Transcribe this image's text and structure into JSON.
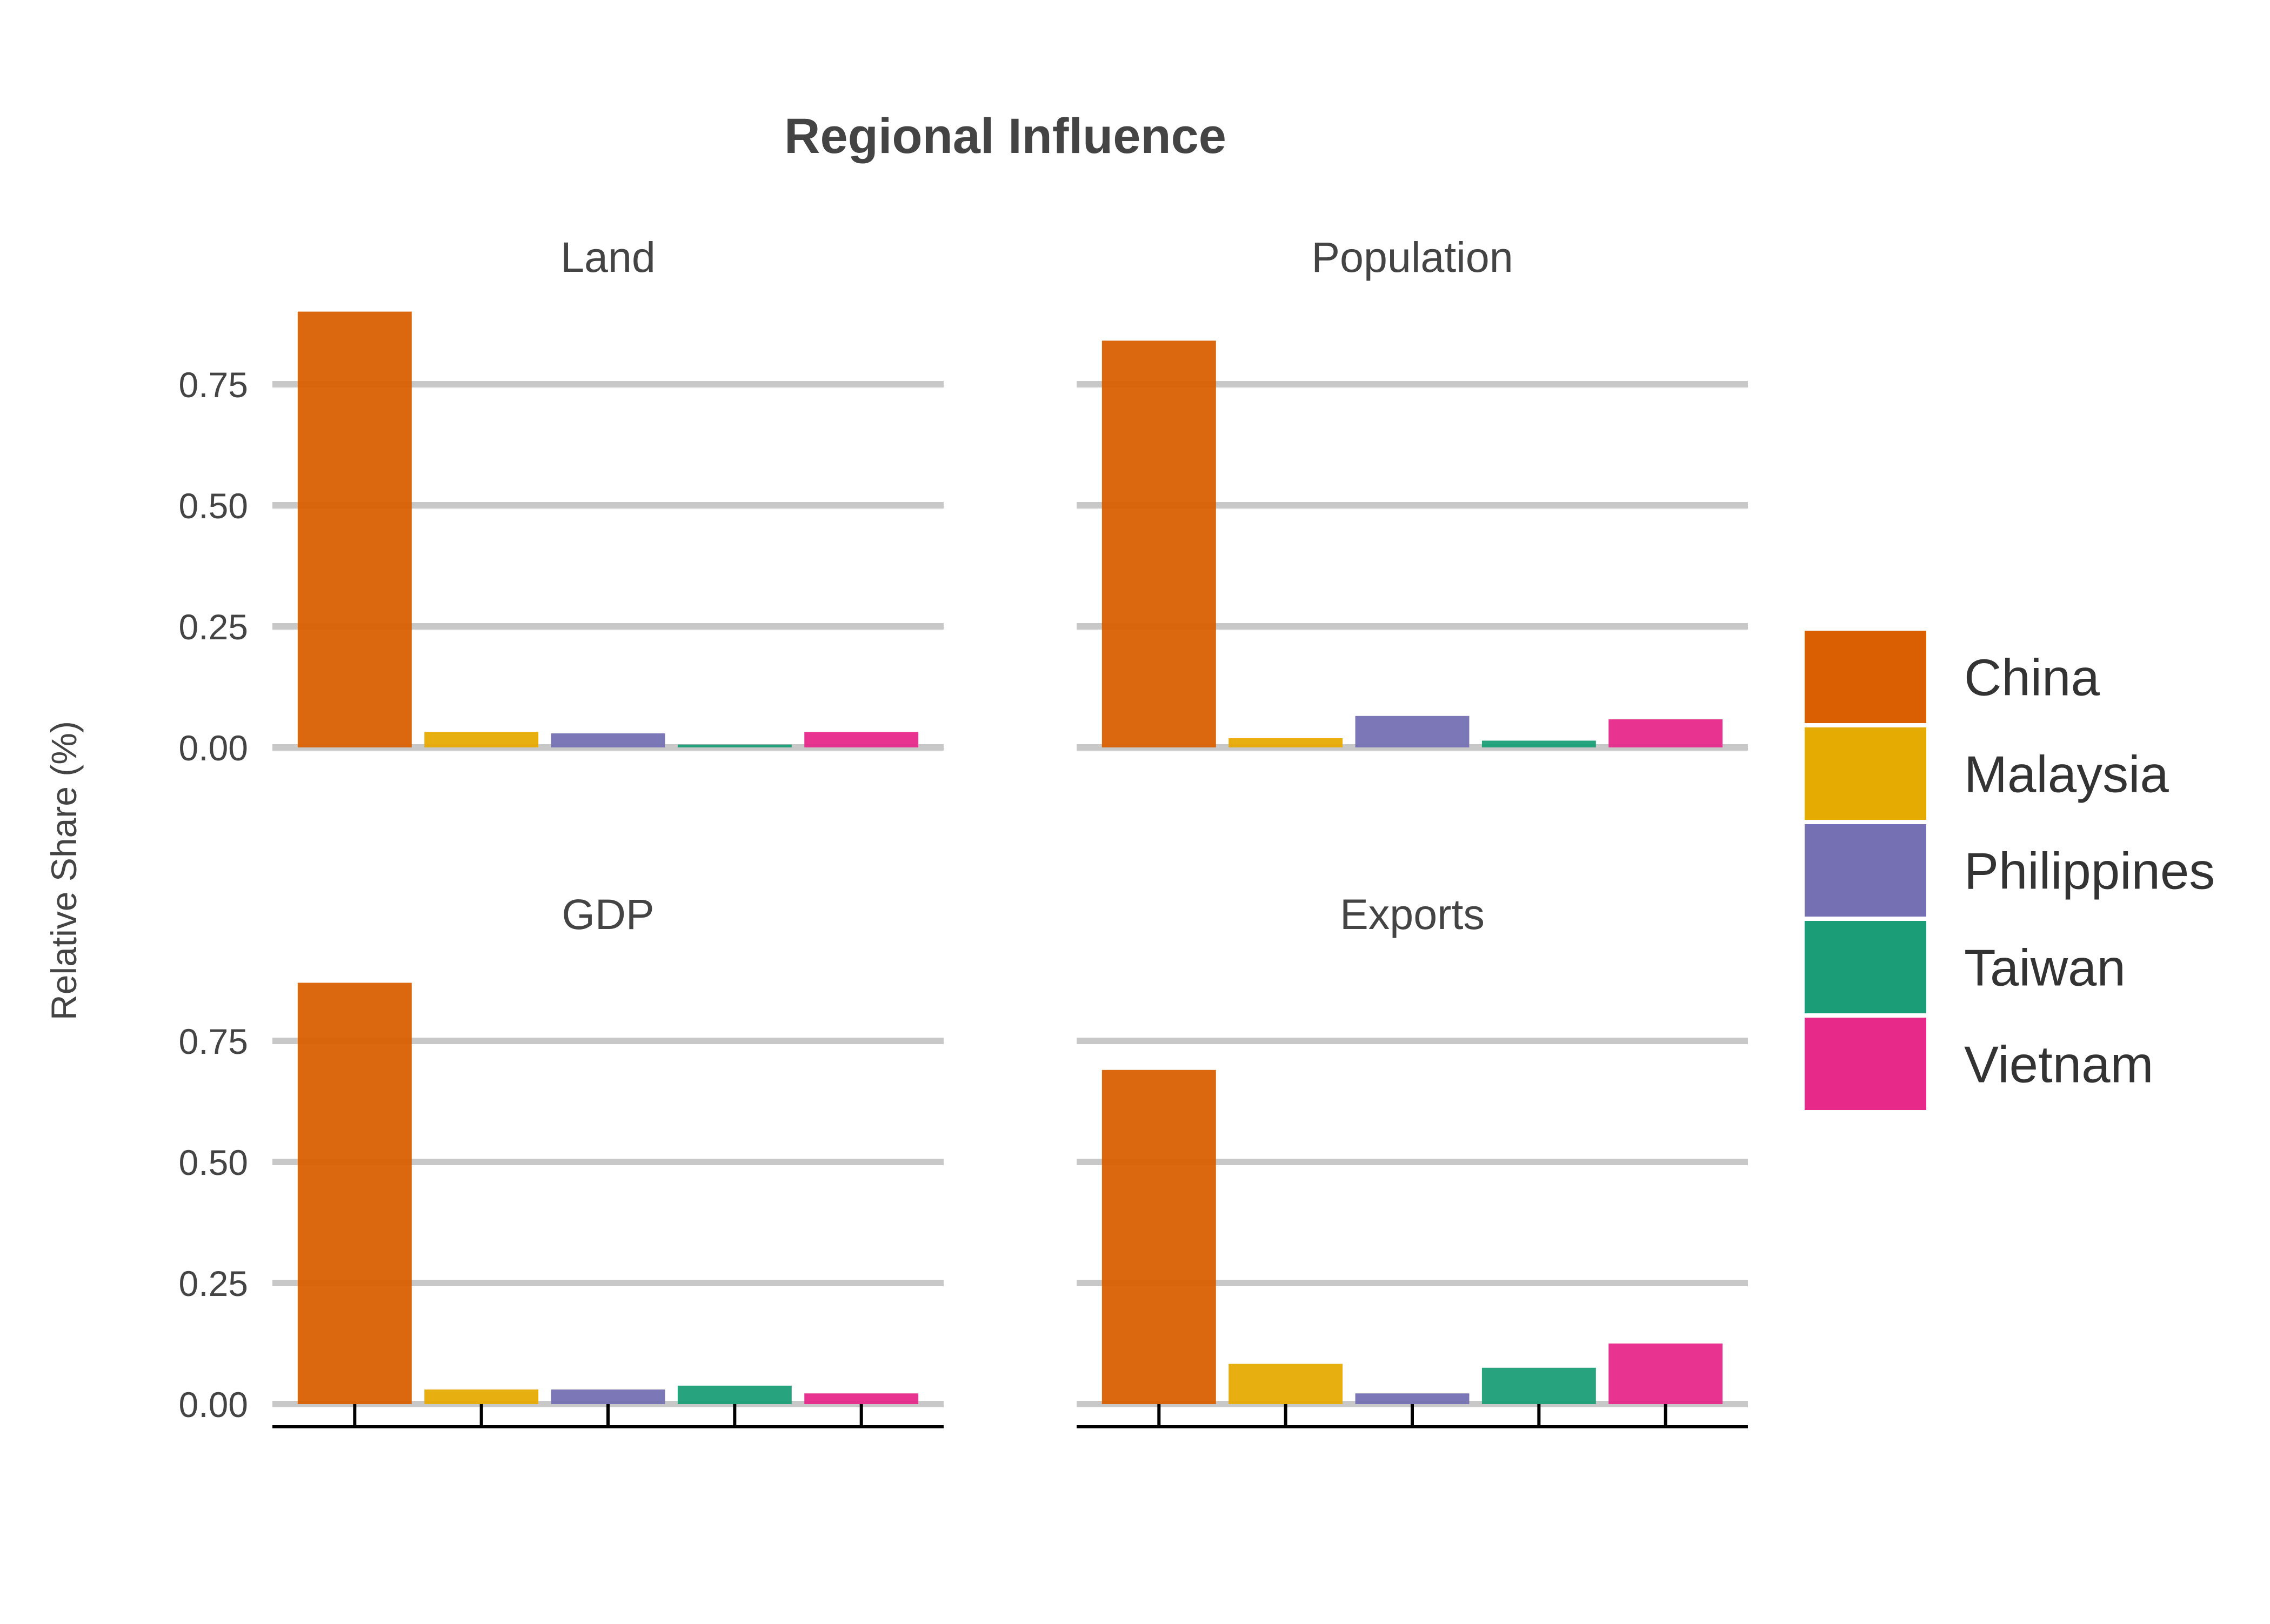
{
  "chart_data": {
    "type": "bar",
    "title": "Regional Influence",
    "ylabel": "Relative Share (%)",
    "xlabel": "",
    "ylim": [
      0,
      0.9
    ],
    "yticks": [
      "0.00",
      "0.25",
      "0.50",
      "0.75"
    ],
    "grid": "horizontal",
    "legend_position": "right",
    "categories": [
      "China",
      "Malaysia",
      "Philippines",
      "Taiwan",
      "Vietnam"
    ],
    "colors": {
      "China": "#d95f02",
      "Malaysia": "#e6ab02",
      "Philippines": "#7570b3",
      "Taiwan": "#1b9e77",
      "Vietnam": "#e7298a"
    },
    "panels": [
      {
        "title": "Land",
        "values": [
          0.9,
          0.032,
          0.029,
          0.006,
          0.032
        ]
      },
      {
        "title": "Population",
        "values": [
          0.84,
          0.019,
          0.065,
          0.014,
          0.058
        ]
      },
      {
        "title": "GDP",
        "values": [
          0.87,
          0.03,
          0.03,
          0.038,
          0.022
        ]
      },
      {
        "title": "Exports",
        "values": [
          0.69,
          0.083,
          0.022,
          0.075,
          0.125
        ]
      }
    ]
  }
}
